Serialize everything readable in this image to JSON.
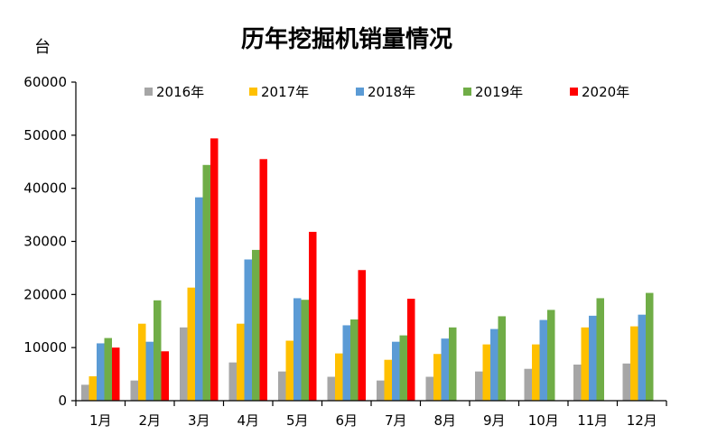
{
  "chart_data": {
    "type": "bar",
    "title": "历年挖掘机销量情况",
    "ylabel": "台",
    "xlabel": "",
    "ylim": [
      0,
      60000
    ],
    "yticks": [
      0,
      10000,
      20000,
      30000,
      40000,
      50000,
      60000
    ],
    "grid": false,
    "legend_position": "top",
    "categories": [
      "1月",
      "2月",
      "3月",
      "4月",
      "5月",
      "6月",
      "7月",
      "8月",
      "9月",
      "10月",
      "11月",
      "12月"
    ],
    "series": [
      {
        "name": "2016年",
        "color": "#a6a6a6",
        "values": [
          3000,
          3800,
          13800,
          7200,
          5500,
          4500,
          3800,
          4500,
          5500,
          6000,
          6800,
          7000
        ]
      },
      {
        "name": "2017年",
        "color": "#ffc000",
        "values": [
          4600,
          14500,
          21300,
          14500,
          11300,
          8900,
          7700,
          8800,
          10600,
          10600,
          13800,
          14000
        ]
      },
      {
        "name": "2018年",
        "color": "#5b9bd5",
        "values": [
          10800,
          11100,
          38300,
          26600,
          19300,
          14200,
          11100,
          11700,
          13500,
          15200,
          16000,
          16200
        ]
      },
      {
        "name": "2019年",
        "color": "#70ad47",
        "values": [
          11800,
          18900,
          44400,
          28400,
          19000,
          15300,
          12300,
          13800,
          15900,
          17100,
          19300,
          20300
        ]
      },
      {
        "name": "2020年",
        "color": "#ff0000",
        "values": [
          10000,
          9300,
          49400,
          45500,
          31800,
          24600,
          19200,
          null,
          null,
          null,
          null,
          null
        ]
      }
    ]
  }
}
